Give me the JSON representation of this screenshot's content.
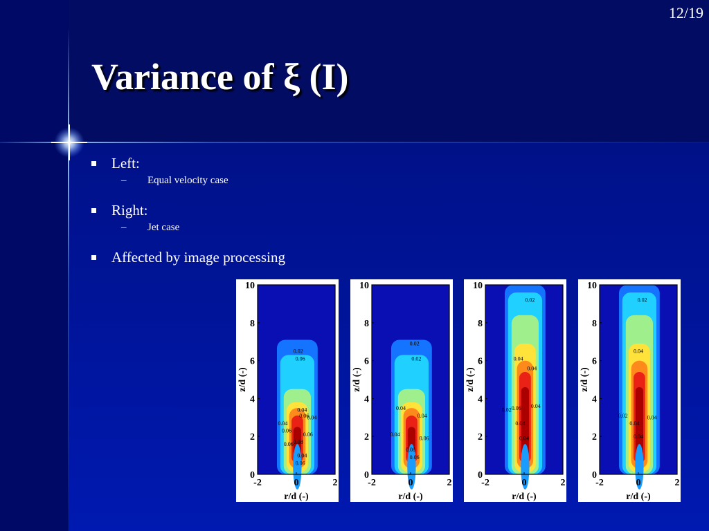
{
  "slide": {
    "number": "12/19",
    "title": "Variance of ξ (I)",
    "bullets": [
      {
        "text": "Left:",
        "sub": "Equal velocity case"
      },
      {
        "text": "Right:",
        "sub": "Jet case"
      },
      {
        "text": "Affected by image processing"
      }
    ]
  },
  "figures": {
    "y_label": "z/d (-)",
    "x_label": "r/d (-)",
    "y_ticks": [
      "10",
      "8",
      "6",
      "4",
      "2",
      "0"
    ],
    "x_ticks": [
      "-2",
      "0",
      "2"
    ],
    "panels": [
      {
        "jet_top": 7.1,
        "contours": [
          "0.02",
          "0.06",
          "0.04",
          "0.06",
          "0.04",
          "0.04",
          "0.06",
          "0.08",
          "0.04",
          "0.06",
          "0.06",
          "0.06"
        ]
      },
      {
        "jet_top": 7.1,
        "contours": [
          "0.02",
          "0.02",
          "0.04",
          "0.04",
          "0.04",
          "0.06",
          "0.08",
          "0.06"
        ]
      },
      {
        "jet_top": 10,
        "contours": [
          "0.02",
          "0.04",
          "0.04",
          "0.06",
          "0.04",
          "0.02",
          "0.04",
          "0.04"
        ]
      },
      {
        "jet_top": 10,
        "contours": [
          "0.02",
          "0.04",
          "0.04",
          "0.02",
          "0.04",
          "0.04"
        ]
      }
    ]
  }
}
